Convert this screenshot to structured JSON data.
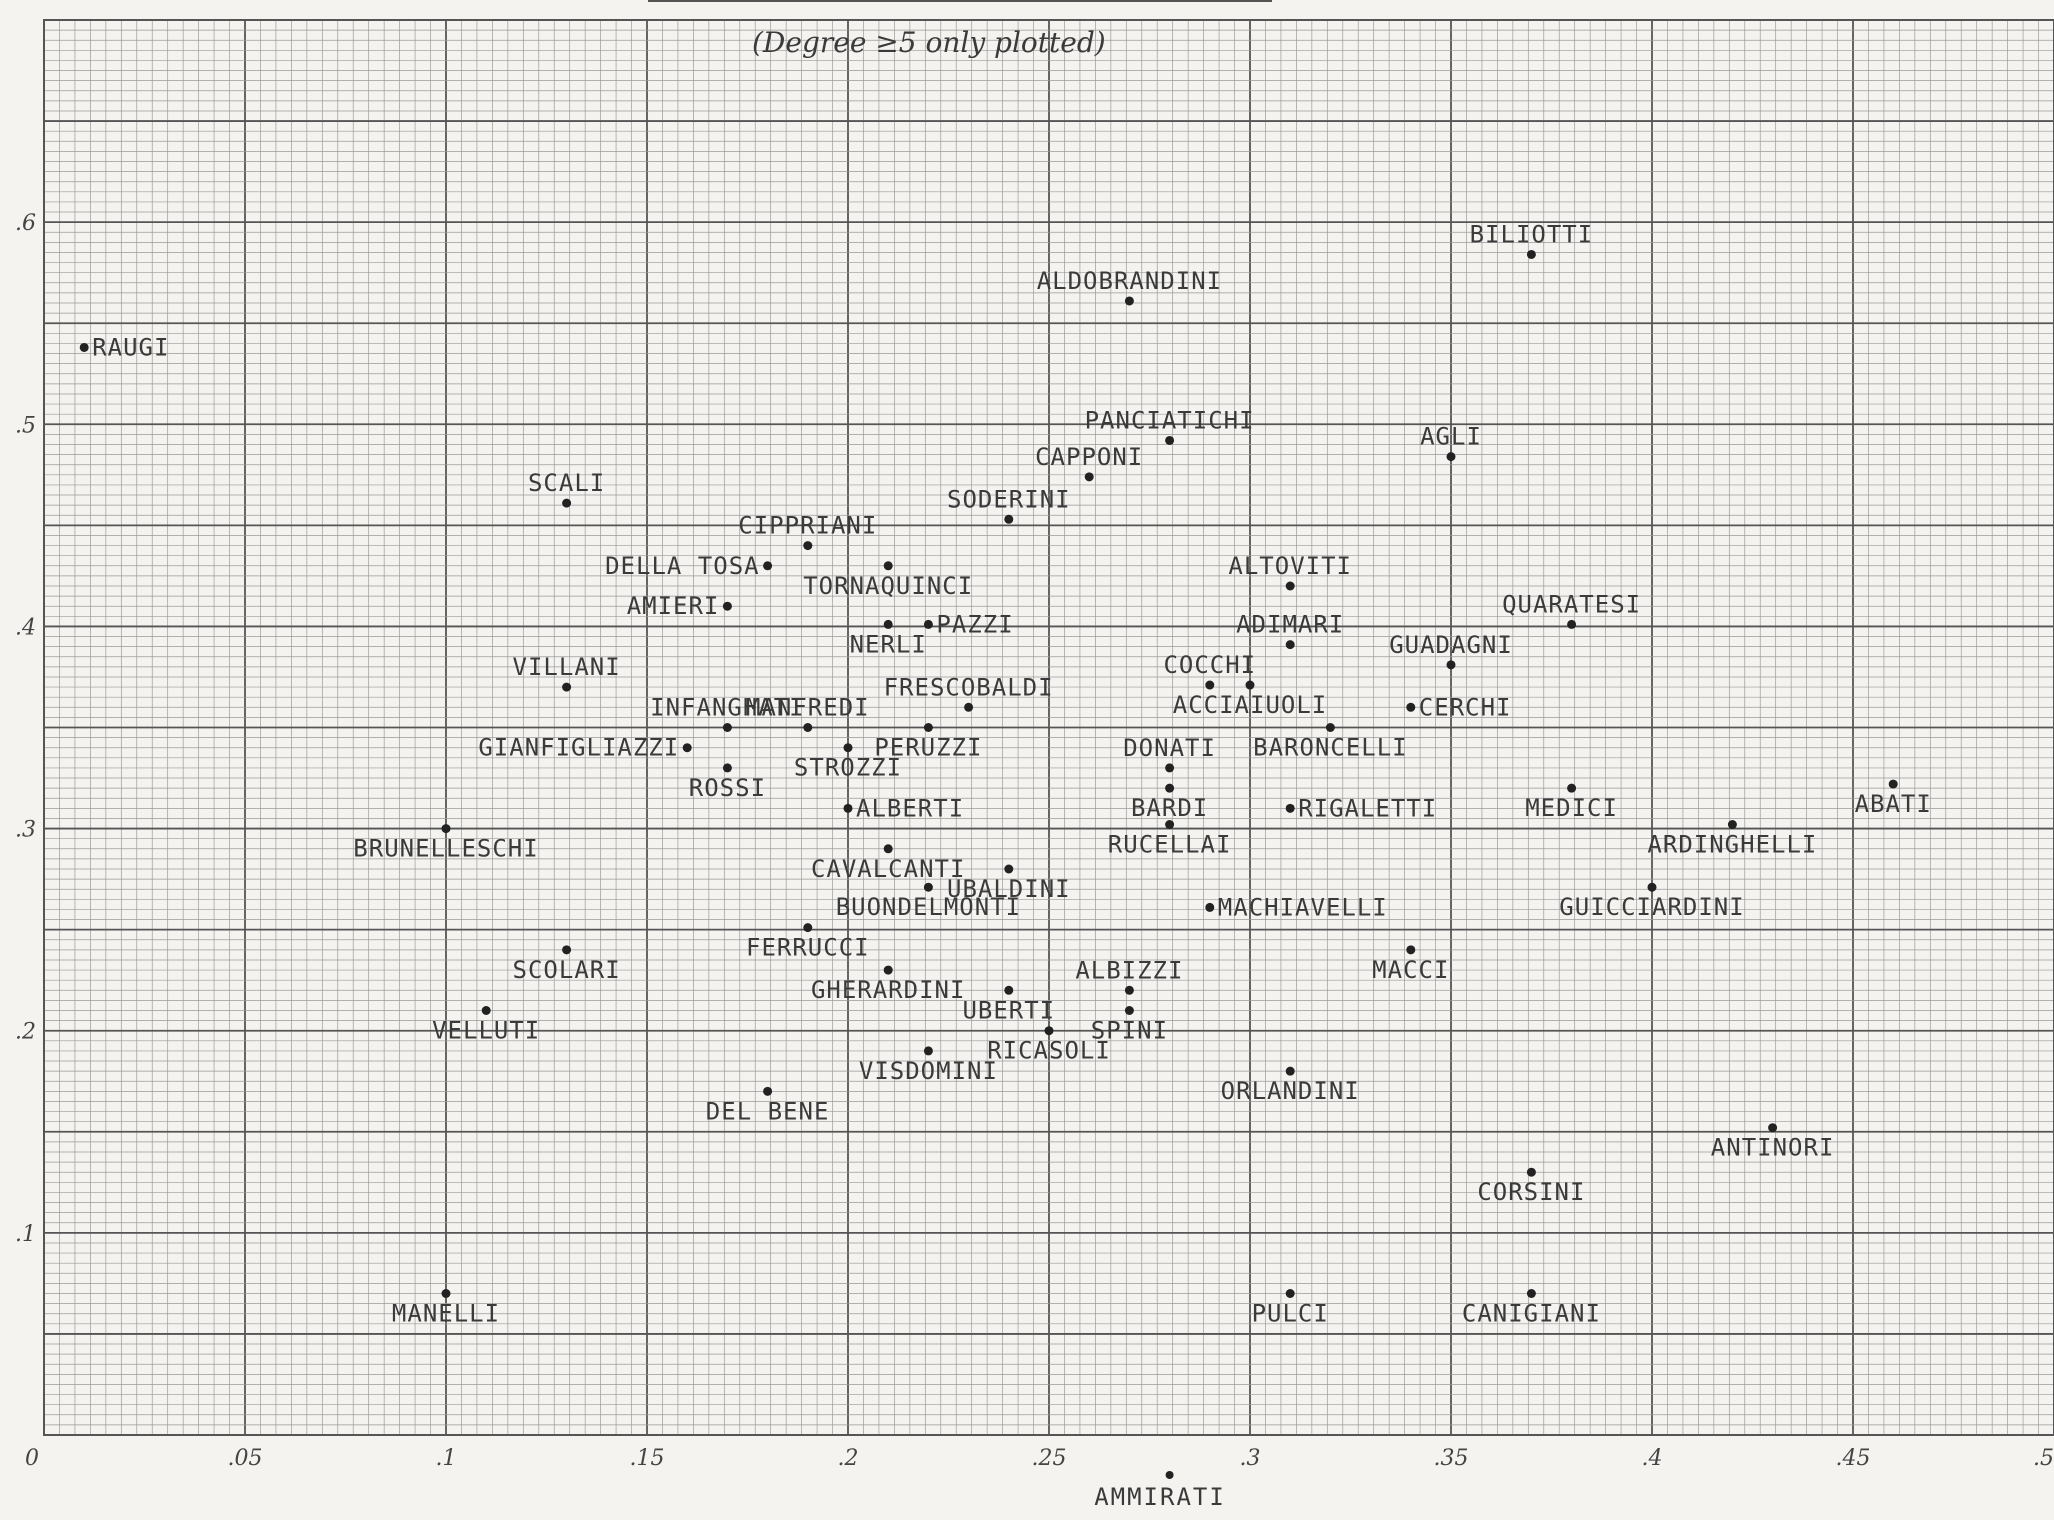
{
  "chart_data": {
    "type": "scatter",
    "note": "(Degree ≥5 only plotted)",
    "xlabel": "AMMIRATI",
    "ylabel": "",
    "xlim": [
      0,
      0.5
    ],
    "ylim": [
      0,
      0.7
    ],
    "grid": true,
    "x_ticks": [
      {
        "value": 0,
        "label": "0"
      },
      {
        "value": 0.05,
        "label": ".05"
      },
      {
        "value": 0.1,
        "label": ".1"
      },
      {
        "value": 0.15,
        "label": ".15"
      },
      {
        "value": 0.2,
        "label": ".2"
      },
      {
        "value": 0.25,
        "label": ".25"
      },
      {
        "value": 0.3,
        "label": ".3"
      },
      {
        "value": 0.35,
        "label": ".35"
      },
      {
        "value": 0.4,
        "label": ".4"
      },
      {
        "value": 0.45,
        "label": ".45"
      },
      {
        "value": 0.5,
        "label": ".5"
      }
    ],
    "y_ticks": [
      {
        "value": 0.1,
        "label": ".1"
      },
      {
        "value": 0.2,
        "label": ".2"
      },
      {
        "value": 0.3,
        "label": ".3"
      },
      {
        "value": 0.4,
        "label": ".4"
      },
      {
        "value": 0.5,
        "label": ".5"
      },
      {
        "value": 0.6,
        "label": ".6"
      }
    ],
    "points": [
      {
        "name": "RAUGI",
        "x": 0.01,
        "y": 0.538,
        "anchor": "start"
      },
      {
        "name": "BILIOTTI",
        "x": 0.37,
        "y": 0.584,
        "anchor": "above"
      },
      {
        "name": "ALDOBRANDINI",
        "x": 0.27,
        "y": 0.561,
        "anchor": "above"
      },
      {
        "name": "PANCIATICHI",
        "x": 0.28,
        "y": 0.492,
        "anchor": "above"
      },
      {
        "name": "AGLI",
        "x": 0.35,
        "y": 0.484,
        "anchor": "above"
      },
      {
        "name": "CAPPONI",
        "x": 0.26,
        "y": 0.474,
        "anchor": "above"
      },
      {
        "name": "SODERINI",
        "x": 0.24,
        "y": 0.453,
        "anchor": "above"
      },
      {
        "name": "SCALI",
        "x": 0.13,
        "y": 0.461,
        "anchor": "above"
      },
      {
        "name": "CIPPRIANI",
        "x": 0.19,
        "y": 0.44,
        "anchor": "above"
      },
      {
        "name": "DELLA TOSA",
        "x": 0.18,
        "y": 0.43,
        "anchor": "end"
      },
      {
        "name": "TORNAQUINCI",
        "x": 0.21,
        "y": 0.43,
        "anchor": "below"
      },
      {
        "name": "ALTOVITI",
        "x": 0.31,
        "y": 0.42,
        "anchor": "above"
      },
      {
        "name": "AMIERI",
        "x": 0.17,
        "y": 0.41,
        "anchor": "end"
      },
      {
        "name": "QUARATESI",
        "x": 0.38,
        "y": 0.401,
        "anchor": "above"
      },
      {
        "name": "PAZZI",
        "x": 0.22,
        "y": 0.401,
        "anchor": "start"
      },
      {
        "name": "NERLI",
        "x": 0.21,
        "y": 0.401,
        "anchor": "below"
      },
      {
        "name": "ADIMARI",
        "x": 0.31,
        "y": 0.391,
        "anchor": "above"
      },
      {
        "name": "GUADAGNI",
        "x": 0.35,
        "y": 0.381,
        "anchor": "above"
      },
      {
        "name": "COCCHI",
        "x": 0.29,
        "y": 0.371,
        "anchor": "above"
      },
      {
        "name": "VILLANI",
        "x": 0.13,
        "y": 0.37,
        "anchor": "above"
      },
      {
        "name": "ACCIAIUOLI",
        "x": 0.3,
        "y": 0.371,
        "anchor": "below"
      },
      {
        "name": "CERCHI",
        "x": 0.34,
        "y": 0.36,
        "anchor": "start"
      },
      {
        "name": "FRESCOBALDI",
        "x": 0.23,
        "y": 0.36,
        "anchor": "above"
      },
      {
        "name": "INFANGHATI",
        "x": 0.17,
        "y": 0.35,
        "anchor": "above"
      },
      {
        "name": "MANFREDI",
        "x": 0.19,
        "y": 0.35,
        "anchor": "above"
      },
      {
        "name": "BARONCELLI",
        "x": 0.32,
        "y": 0.35,
        "anchor": "below"
      },
      {
        "name": "PERUZZI",
        "x": 0.22,
        "y": 0.35,
        "anchor": "below"
      },
      {
        "name": "GIANFIGLIAZZI",
        "x": 0.16,
        "y": 0.34,
        "anchor": "end"
      },
      {
        "name": "STROZZI",
        "x": 0.2,
        "y": 0.34,
        "anchor": "below"
      },
      {
        "name": "DONATI",
        "x": 0.28,
        "y": 0.33,
        "anchor": "above"
      },
      {
        "name": "ROSSI",
        "x": 0.17,
        "y": 0.33,
        "anchor": "below"
      },
      {
        "name": "BARDI",
        "x": 0.28,
        "y": 0.32,
        "anchor": "below"
      },
      {
        "name": "MEDICI",
        "x": 0.38,
        "y": 0.32,
        "anchor": "below"
      },
      {
        "name": "ABATI",
        "x": 0.46,
        "y": 0.322,
        "anchor": "below"
      },
      {
        "name": "ALBERTI",
        "x": 0.2,
        "y": 0.31,
        "anchor": "start"
      },
      {
        "name": "RIGALETTI",
        "x": 0.31,
        "y": 0.31,
        "anchor": "start"
      },
      {
        "name": "ARDINGHELLI",
        "x": 0.42,
        "y": 0.302,
        "anchor": "below"
      },
      {
        "name": "RUCELLAI",
        "x": 0.28,
        "y": 0.302,
        "anchor": "below"
      },
      {
        "name": "BRUNELLESCHI",
        "x": 0.1,
        "y": 0.3,
        "anchor": "below"
      },
      {
        "name": "CAVALCANTI",
        "x": 0.21,
        "y": 0.29,
        "anchor": "below"
      },
      {
        "name": "UBALDINI",
        "x": 0.24,
        "y": 0.28,
        "anchor": "below"
      },
      {
        "name": "BUONDELMONTI",
        "x": 0.22,
        "y": 0.271,
        "anchor": "below"
      },
      {
        "name": "GUICCIARDINI",
        "x": 0.4,
        "y": 0.271,
        "anchor": "below"
      },
      {
        "name": "MACHIAVELLI",
        "x": 0.29,
        "y": 0.261,
        "anchor": "start"
      },
      {
        "name": "FERRUCCI",
        "x": 0.19,
        "y": 0.251,
        "anchor": "below"
      },
      {
        "name": "SCOLARI",
        "x": 0.13,
        "y": 0.24,
        "anchor": "below"
      },
      {
        "name": "MACCI",
        "x": 0.34,
        "y": 0.24,
        "anchor": "below"
      },
      {
        "name": "GHERARDINI",
        "x": 0.21,
        "y": 0.23,
        "anchor": "below"
      },
      {
        "name": "ALBIZZI",
        "x": 0.27,
        "y": 0.22,
        "anchor": "above"
      },
      {
        "name": "UBERTI",
        "x": 0.24,
        "y": 0.22,
        "anchor": "below"
      },
      {
        "name": "SPINI",
        "x": 0.27,
        "y": 0.21,
        "anchor": "below"
      },
      {
        "name": "VELLUTI",
        "x": 0.11,
        "y": 0.21,
        "anchor": "below"
      },
      {
        "name": "RICASOLI",
        "x": 0.25,
        "y": 0.2,
        "anchor": "below"
      },
      {
        "name": "VISDOMINI",
        "x": 0.22,
        "y": 0.19,
        "anchor": "below"
      },
      {
        "name": "ORLANDINI",
        "x": 0.31,
        "y": 0.18,
        "anchor": "below"
      },
      {
        "name": "DEL BENE",
        "x": 0.18,
        "y": 0.17,
        "anchor": "below"
      },
      {
        "name": "ANTINORI",
        "x": 0.43,
        "y": 0.152,
        "anchor": "below"
      },
      {
        "name": "CORSINI",
        "x": 0.37,
        "y": 0.13,
        "anchor": "below"
      },
      {
        "name": "MANELLI",
        "x": 0.1,
        "y": 0.07,
        "anchor": "below"
      },
      {
        "name": "PULCI",
        "x": 0.31,
        "y": 0.07,
        "anchor": "below"
      },
      {
        "name": "CANIGIANI",
        "x": 0.37,
        "y": 0.07,
        "anchor": "below"
      }
    ]
  }
}
